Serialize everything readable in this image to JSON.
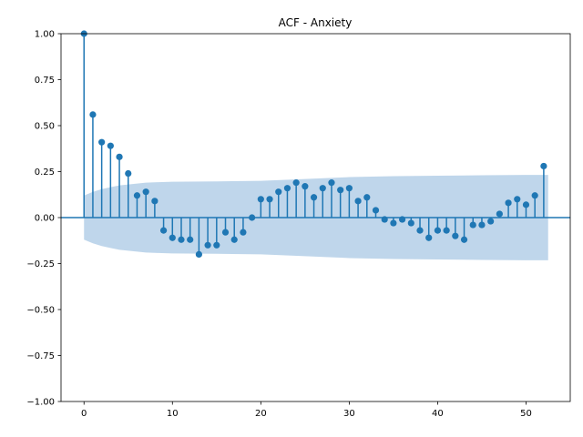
{
  "chart_data": {
    "type": "stem",
    "title": "ACF - Anxiety",
    "xlabel": "",
    "ylabel": "",
    "xlim": [
      -2.6,
      55
    ],
    "ylim": [
      -1.0,
      1.0
    ],
    "x_ticks": [
      0,
      10,
      20,
      30,
      40,
      50
    ],
    "x_tick_labels": [
      "0",
      "10",
      "20",
      "30",
      "40",
      "50"
    ],
    "y_ticks": [
      -1.0,
      -0.75,
      -0.5,
      -0.25,
      0.0,
      0.25,
      0.5,
      0.75,
      1.0
    ],
    "y_tick_labels": [
      "−1.00",
      "−0.75",
      "−0.50",
      "−0.25",
      "0.00",
      "0.25",
      "0.50",
      "0.75",
      "1.00"
    ],
    "grid": false,
    "legend": "none",
    "series": [
      {
        "lags": [
          0,
          1,
          2,
          3,
          4,
          5,
          6,
          7,
          8,
          9,
          10,
          11,
          12,
          13,
          14,
          15,
          16,
          17,
          18,
          19,
          20,
          21,
          22,
          23,
          24,
          25,
          26,
          27,
          28,
          29,
          30,
          31,
          32,
          33,
          34,
          35,
          36,
          37,
          38,
          39,
          40,
          41,
          42,
          43,
          44,
          45,
          46,
          47,
          48,
          49,
          50,
          51,
          52
        ],
        "values": [
          1.0,
          0.56,
          0.41,
          0.39,
          0.33,
          0.24,
          0.12,
          0.14,
          0.09,
          -0.07,
          -0.11,
          -0.12,
          -0.12,
          -0.2,
          -0.15,
          -0.15,
          -0.08,
          -0.12,
          -0.08,
          0.0,
          0.1,
          0.1,
          0.14,
          0.16,
          0.19,
          0.17,
          0.11,
          0.16,
          0.19,
          0.15,
          0.16,
          0.09,
          0.11,
          0.04,
          -0.01,
          -0.03,
          -0.01,
          -0.03,
          -0.07,
          -0.11,
          -0.07,
          -0.07,
          -0.1,
          -0.12,
          -0.04,
          -0.04,
          -0.02,
          0.02,
          0.08,
          0.1,
          0.07,
          0.12,
          0.28
        ]
      }
    ],
    "confidence_band": {
      "lags": [
        0,
        1,
        2,
        3,
        4,
        5,
        6,
        7,
        8,
        10,
        15,
        20,
        25,
        30,
        35,
        40,
        45,
        50,
        52.5
      ],
      "upper": [
        0.12,
        0.14,
        0.155,
        0.165,
        0.175,
        0.18,
        0.185,
        0.19,
        0.192,
        0.195,
        0.197,
        0.2,
        0.21,
        0.22,
        0.225,
        0.228,
        0.23,
        0.232,
        0.232
      ],
      "lower": [
        -0.12,
        -0.14,
        -0.155,
        -0.165,
        -0.175,
        -0.18,
        -0.185,
        -0.19,
        -0.192,
        -0.195,
        -0.197,
        -0.2,
        -0.21,
        -0.22,
        -0.225,
        -0.228,
        -0.23,
        -0.232,
        -0.232
      ]
    },
    "colors": {
      "stem": "#1f77b4",
      "band": "#aac8e4",
      "axes": "#000000"
    }
  }
}
